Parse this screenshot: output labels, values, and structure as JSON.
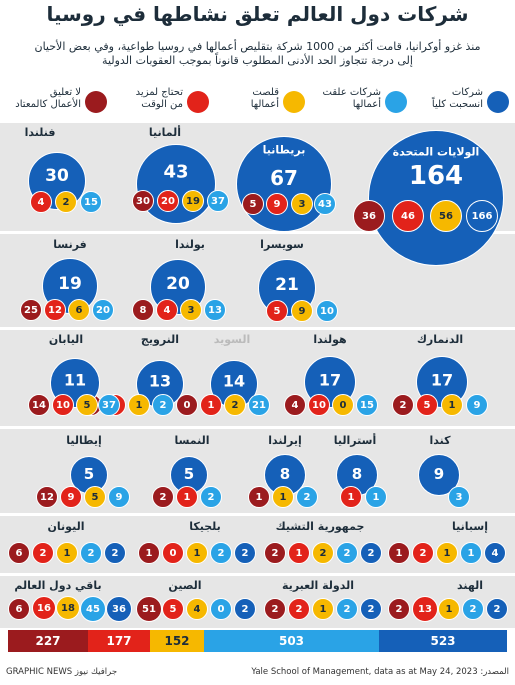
{
  "title": "شركات دول العالم تعلق نشاطها في روسيا",
  "subtitle_line1": "منذ غزو أوكرانيا، قامت أكثر من 1000 شركة بتقليص أعمالها في روسيا طواعية، وفي بعض الأحيان",
  "subtitle_line2": "إلى درجة تتجاوز الحد الأدنى المطلوب قانوناً بموجب العقوبات الدولية",
  "colors": {
    "withdrawn": "#1560b8",
    "suspended": "#2aa3e6",
    "scaled_back": "#f6b800",
    "buying_time": "#e2231a",
    "digging_in": "#9b1b1e"
  },
  "legend": [
    {
      "key": "withdrawn",
      "label": "شركات\nانسحبت كلياً"
    },
    {
      "key": "suspended",
      "label": "شركات علقت\nأعمالها"
    },
    {
      "key": "scaled_back",
      "label": "قلصت\nأعمالها"
    },
    {
      "key": "buying_time",
      "label": "تحتاج لمزيد\nمن الوقت"
    },
    {
      "key": "digging_in",
      "label": "لا تعليق\nالأعمال كالمعتاد"
    }
  ],
  "panel_row1": [
    {
      "name": "الولايات المتحدة",
      "total": "164",
      "withdrawn": "166",
      "scaled_back": "56",
      "buying_time": "46",
      "digging_in": "36"
    },
    {
      "name": "بريطانيا",
      "total": "67",
      "suspended": "43",
      "scaled_back": "3",
      "buying_time": "9",
      "digging_in": "5"
    },
    {
      "name": "ألمانيا",
      "total": "43",
      "suspended": "37",
      "scaled_back": "19",
      "buying_time": "20",
      "digging_in": "30"
    },
    {
      "name": "فنلندا",
      "total": "30",
      "suspended": "15",
      "scaled_back": "2",
      "digging_in": "4"
    }
  ],
  "panel_row2": [
    {
      "name": "سويسرا",
      "total": "21",
      "suspended": "10",
      "scaled_back": "9",
      "buying_time": "5"
    },
    {
      "name": "بولندا",
      "total": "20",
      "suspended": "13",
      "scaled_back": "3",
      "buying_time": "4",
      "digging_in": "8"
    },
    {
      "name": "فرنسا",
      "total": "19",
      "suspended": "20",
      "scaled_back": "6",
      "buying_time": "12",
      "digging_in": "25"
    }
  ],
  "panel_row3": [
    {
      "name": "الدنمارك",
      "total": "17",
      "suspended": "9",
      "scaled_back": "1",
      "buying_time": "5",
      "digging_in": "2"
    },
    {
      "name": "هولندا",
      "total": "17",
      "suspended": "15",
      "scaled_back": "0",
      "buying_time": "10",
      "digging_in": "4"
    },
    {
      "name": "السويد",
      "total": "14",
      "suspended": "21",
      "scaled_back": "2",
      "buying_time": "1",
      "digging_in": "0"
    },
    {
      "name": "النرويج",
      "total": "13",
      "suspended": "2",
      "scaled_back": "1",
      "buying_time": "0",
      "digging_in": "1"
    },
    {
      "name": "اليابان",
      "total": "11",
      "suspended": "37",
      "scaled_back": "5",
      "buying_time": "10",
      "digging_in": "14"
    }
  ],
  "panel_row4": [
    {
      "name": "كندا",
      "total": "9",
      "suspended": "3"
    },
    {
      "name": "أستراليا",
      "total": "8",
      "suspended": "1",
      "buying_time": "1"
    },
    {
      "name": "إيرلندا",
      "total": "8",
      "suspended": "2",
      "scaled_back": "1",
      "digging_in": "1"
    },
    {
      "name": "النمسا",
      "total": "5",
      "suspended": "2",
      "buying_time": "1",
      "digging_in": "2"
    },
    {
      "name": "إيطاليا",
      "total": "5",
      "suspended": "9",
      "scaled_back": "5",
      "buying_time": "9",
      "digging_in": "12"
    }
  ],
  "panel_row5": [
    {
      "name": "إسبانيا",
      "withdrawn": "4",
      "suspended": "1",
      "scaled_back": "1",
      "buying_time": "2",
      "digging_in": "1"
    },
    {
      "name": "جمهورية التشيك",
      "withdrawn": "2",
      "suspended": "2",
      "scaled_back": "2",
      "buying_time": "1",
      "digging_in": "2"
    },
    {
      "name": "بلجيكا",
      "withdrawn": "2",
      "suspended": "2",
      "scaled_back": "1",
      "buying_time": "0",
      "digging_in": "1"
    },
    {
      "name": "اليونان",
      "withdrawn": "2",
      "suspended": "2",
      "scaled_back": "1",
      "buying_time": "2",
      "digging_in": "6"
    }
  ],
  "panel_row6": [
    {
      "name": "الهند",
      "withdrawn": "2",
      "suspended": "2",
      "scaled_back": "1",
      "buying_time": "13",
      "digging_in": "2"
    },
    {
      "name": "الدولة العبرية",
      "withdrawn": "2",
      "suspended": "2",
      "scaled_back": "1",
      "buying_time": "2",
      "digging_in": "2"
    },
    {
      "name": "الصين",
      "withdrawn": "2",
      "suspended": "0",
      "scaled_back": "4",
      "buying_time": "5",
      "digging_in": "51"
    },
    {
      "name": "باقي دول العالم",
      "withdrawn": "36",
      "suspended": "45",
      "scaled_back": "18",
      "buying_time": "16",
      "digging_in": "6"
    }
  ],
  "totals": {
    "digging_in": "227",
    "buying_time": "177",
    "scaled_back": "152",
    "suspended": "503",
    "withdrawn": "523"
  },
  "source": "المصدر: Yale School of Management, data as at May 24, 2023",
  "brand": "GRAPHIC NEWS  جرافيك نيوز"
}
